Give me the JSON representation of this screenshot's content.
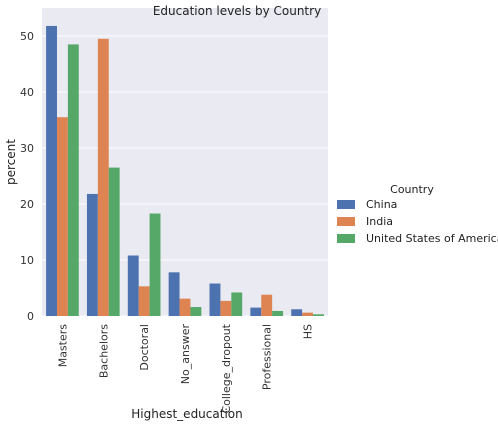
{
  "chart_data": {
    "type": "bar",
    "title": "Education levels by Country",
    "xlabel": "Highest_education",
    "ylabel": "percent",
    "categories": [
      "Masters",
      "Bachelors",
      "Doctoral",
      "No_answer",
      "College_dropout",
      "Professional",
      "HS"
    ],
    "series": [
      {
        "name": "China",
        "color": "#4c72b0",
        "values": [
          51.8,
          21.8,
          10.8,
          7.8,
          5.8,
          1.5,
          1.2
        ]
      },
      {
        "name": "India",
        "color": "#dd8452",
        "values": [
          35.5,
          49.5,
          5.3,
          3.1,
          2.7,
          3.8,
          0.6
        ]
      },
      {
        "name": "United States of America",
        "color": "#55a868",
        "values": [
          48.5,
          26.5,
          18.3,
          1.6,
          4.2,
          0.9,
          0.3
        ]
      }
    ],
    "ylim": [
      0,
      55
    ],
    "yticks": [
      0,
      10,
      20,
      30,
      40,
      50
    ],
    "legend_title": "Country",
    "legend_position": "right",
    "grid": true
  }
}
